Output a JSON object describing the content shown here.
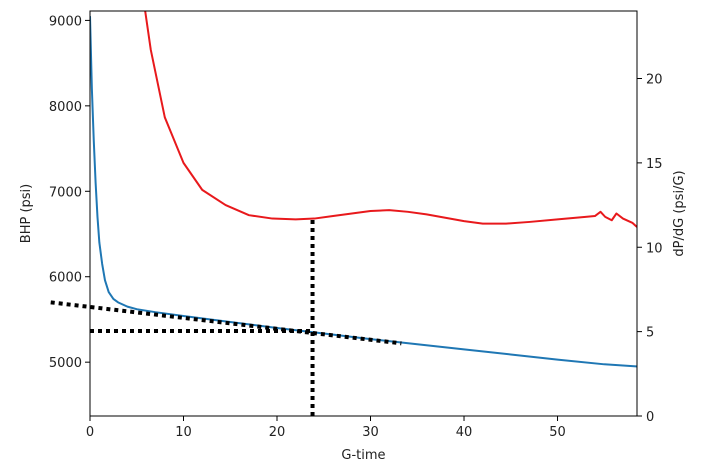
{
  "chart_data": {
    "type": "line",
    "xlabel": "G-time",
    "ylabel_left": "BHP (psi)",
    "ylabel_right": "dP/dG (psi/G)",
    "xlim": [
      0,
      58.5
    ],
    "ylim_left": [
      4370,
      9110
    ],
    "ylim_right": [
      0,
      24
    ],
    "x_ticks": [
      0,
      10,
      20,
      30,
      40,
      50
    ],
    "y_ticks_left": [
      5000,
      6000,
      7000,
      8000,
      9000
    ],
    "y_ticks_right": [
      0,
      5,
      10,
      15,
      20
    ],
    "grid": false,
    "colors": {
      "bhp": "#1f77b4",
      "derivative": "#e8191c",
      "guides": "#000000"
    },
    "series": [
      {
        "axis": "left",
        "color": "#1f77b4",
        "x": [
          0,
          0.2,
          0.4,
          0.6,
          0.8,
          1.0,
          1.3,
          1.6,
          2.0,
          2.5,
          3.0,
          4.0,
          5.0,
          7.0,
          10,
          15,
          20,
          25,
          30,
          35,
          40,
          45,
          50,
          55,
          58.5
        ],
        "y": [
          9050,
          8200,
          7600,
          7100,
          6700,
          6400,
          6150,
          5960,
          5820,
          5740,
          5700,
          5650,
          5620,
          5585,
          5540,
          5470,
          5400,
          5335,
          5270,
          5210,
          5150,
          5090,
          5030,
          4975,
          4950
        ]
      },
      {
        "axis": "right",
        "color": "#e8191c",
        "x": [
          5.9,
          6.5,
          8.0,
          10,
          12,
          14.5,
          17,
          19.5,
          22,
          24,
          26,
          28,
          30,
          32,
          34,
          36,
          38,
          40,
          42,
          44.5,
          47,
          50,
          53,
          54,
          54.6,
          55.1,
          55.8,
          56.3,
          57,
          58,
          58.5
        ],
        "y": [
          24,
          21.7,
          17.7,
          15.0,
          13.4,
          12.5,
          11.9,
          11.7,
          11.65,
          11.7,
          11.85,
          12.0,
          12.15,
          12.2,
          12.1,
          11.95,
          11.75,
          11.55,
          11.4,
          11.4,
          11.5,
          11.65,
          11.8,
          11.85,
          12.1,
          11.8,
          11.6,
          12.0,
          11.7,
          11.45,
          11.2
        ]
      }
    ],
    "guides": [
      {
        "x": [
          -4.2,
          33.3
        ],
        "y_left": [
          5700,
          5220
        ]
      },
      {
        "x": [
          0,
          23.8
        ],
        "y_left": [
          5365,
          5365
        ]
      },
      {
        "x": [
          23.8,
          23.8
        ],
        "y_left": [
          4370,
          6680
        ]
      }
    ]
  }
}
